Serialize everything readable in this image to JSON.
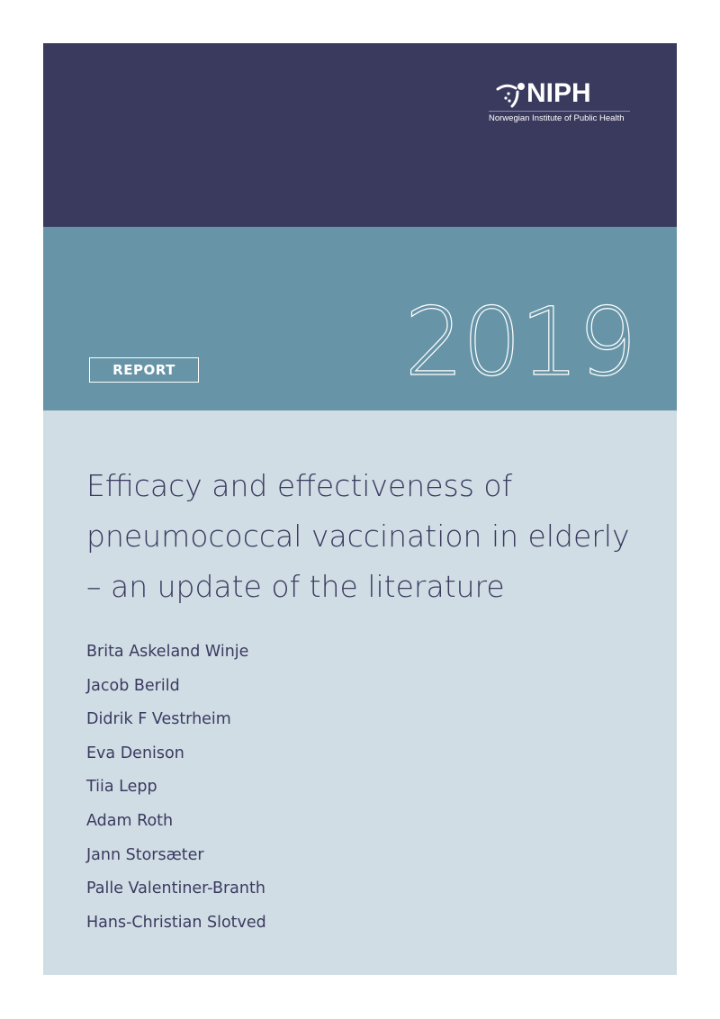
{
  "logo": {
    "name": "NIPH",
    "subtitle": "Norwegian Institute of Public Health"
  },
  "cover": {
    "year": "2019",
    "type_badge": "REPORT",
    "title_lines": [
      "Efficacy and effectiveness of",
      "pneumococcal vaccination in elderly",
      "– an update of the literature"
    ],
    "authors": [
      "Brita Askeland Winje",
      "Jacob Berild",
      "Didrik F Vestrheim",
      "Eva Denison",
      "Tiia Lepp",
      "Adam Roth",
      "Jann Storsæter",
      "Palle Valentiner-Branth",
      "Hans-Christian Slotved"
    ]
  },
  "colors": {
    "navy": "#3a3a5f",
    "teal": "#6795a7",
    "light": "#d0dde5"
  }
}
